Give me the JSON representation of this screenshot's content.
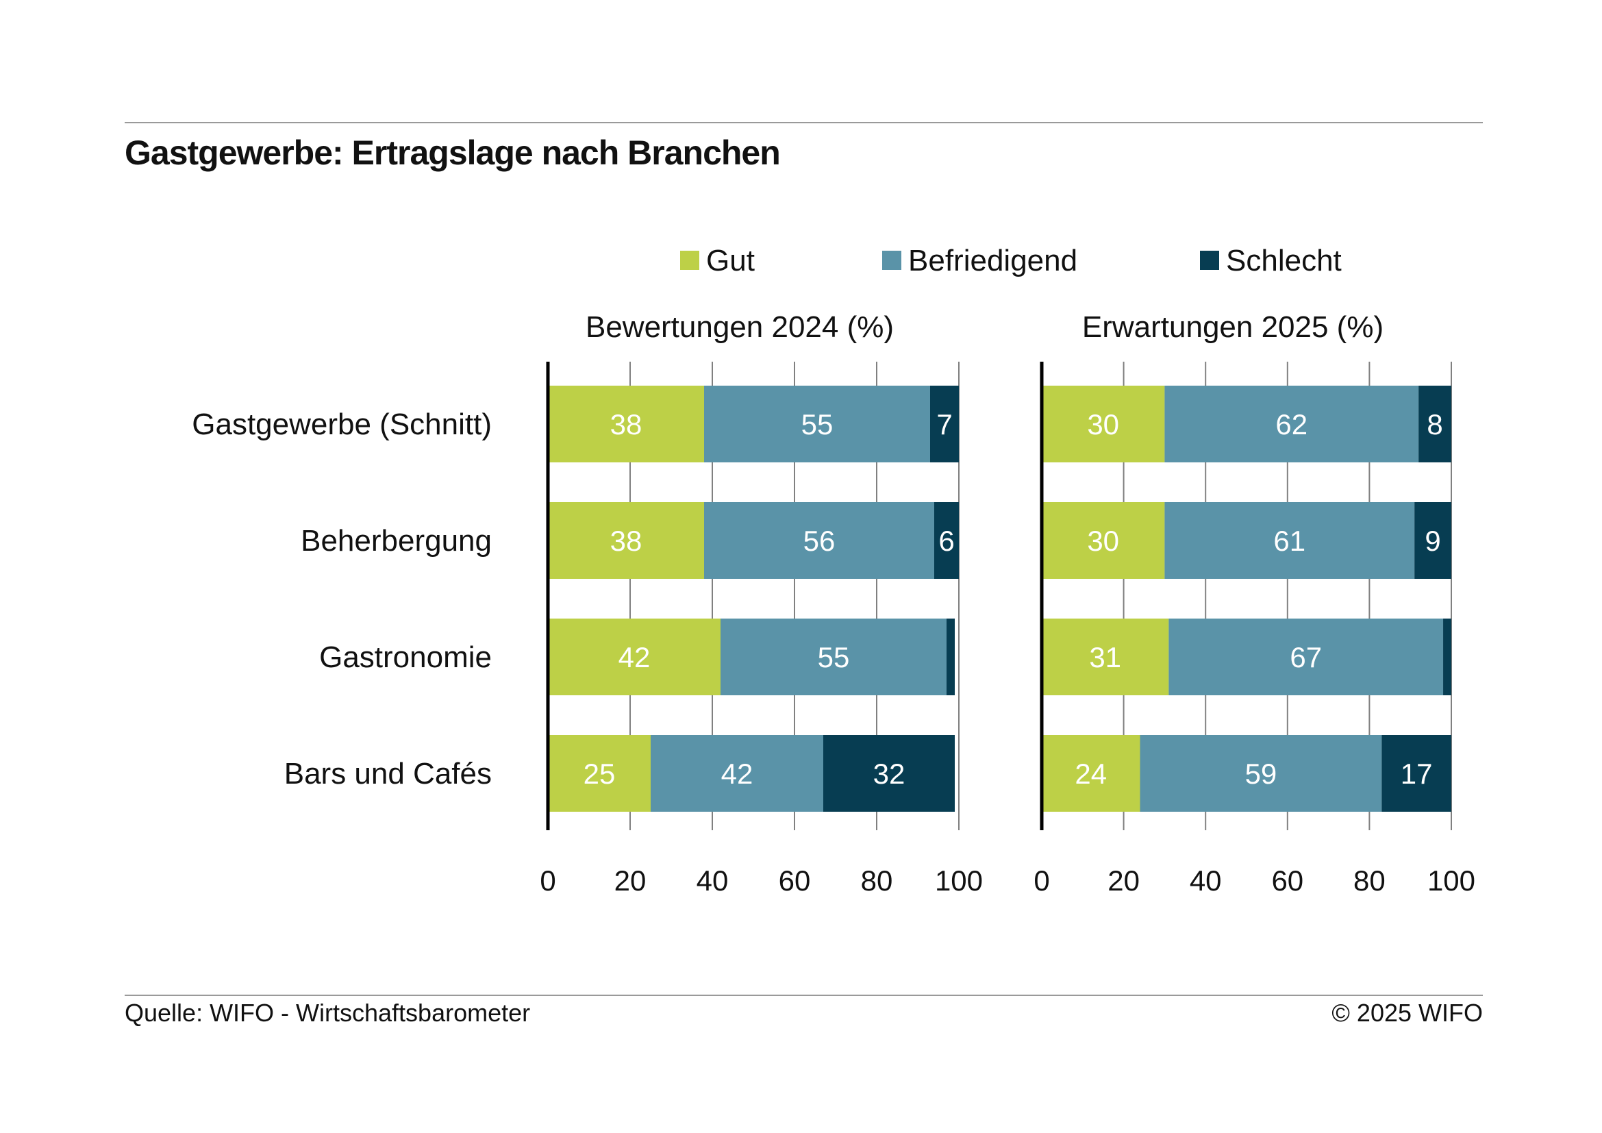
{
  "title": "Gastgewerbe: Ertragslage nach Branchen",
  "source": "Quelle: WIFO - Wirtschaftsbarometer",
  "copyright": "© 2025 WIFO",
  "colors": {
    "gut": "#bdd047",
    "befriedigend": "#5a93a8",
    "schlecht": "#073d52",
    "grid": "#808080",
    "axis": "#000000",
    "label_light": "#ffffff"
  },
  "chart_data": {
    "type": "bar",
    "orientation": "horizontal",
    "stacked": true,
    "categories": [
      "Gastgewerbe (Schnitt)",
      "Beherbergung",
      "Gastronomie",
      "Bars und Cafés"
    ],
    "legend": [
      "Gut",
      "Befriedigend",
      "Schlecht"
    ],
    "legend_position": "top",
    "xlim": [
      0,
      100
    ],
    "xticks": [
      0,
      20,
      40,
      60,
      80,
      100
    ],
    "grid": true,
    "panels": [
      {
        "title": "Bewertungen 2024 (%)",
        "series": [
          {
            "name": "Gut",
            "values": [
              38,
              38,
              42,
              25
            ]
          },
          {
            "name": "Befriedigend",
            "values": [
              55,
              56,
              55,
              42
            ]
          },
          {
            "name": "Schlecht",
            "values": [
              7,
              6,
              2,
              32
            ]
          }
        ],
        "labels": [
          [
            "38",
            "55",
            "7"
          ],
          [
            "38",
            "56",
            "6"
          ],
          [
            "42",
            "55",
            ""
          ],
          [
            "25",
            "42",
            "32"
          ]
        ]
      },
      {
        "title": "Erwartungen 2025 (%)",
        "series": [
          {
            "name": "Gut",
            "values": [
              30,
              30,
              31,
              24
            ]
          },
          {
            "name": "Befriedigend",
            "values": [
              62,
              61,
              67,
              59
            ]
          },
          {
            "name": "Schlecht",
            "values": [
              8,
              9,
              2,
              17
            ]
          }
        ],
        "labels": [
          [
            "30",
            "62",
            "8"
          ],
          [
            "30",
            "61",
            "9"
          ],
          [
            "31",
            "67",
            ""
          ],
          [
            "24",
            "59",
            "17"
          ]
        ]
      }
    ]
  }
}
